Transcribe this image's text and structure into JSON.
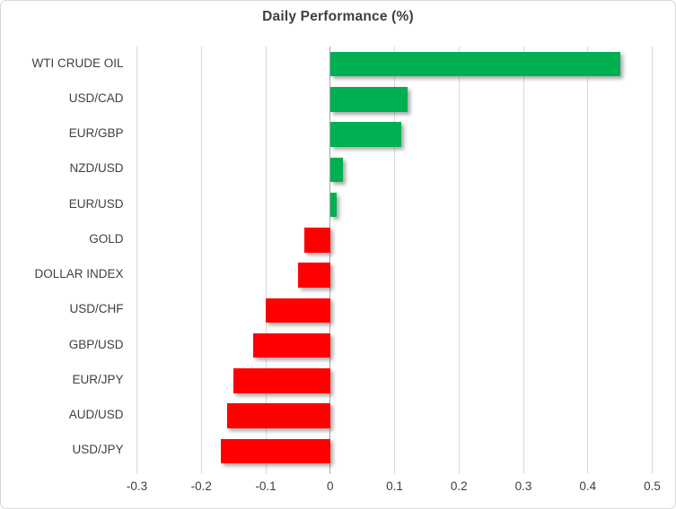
{
  "chart_data": {
    "type": "bar",
    "orientation": "horizontal",
    "title": "Daily Performance (%)",
    "categories": [
      "WTI CRUDE OIL",
      "USD/CAD",
      "EUR/GBP",
      "NZD/USD",
      "EUR/USD",
      "GOLD",
      "DOLLAR INDEX",
      "USD/CHF",
      "GBP/USD",
      "EUR/JPY",
      "AUD/USD",
      "USD/JPY"
    ],
    "values": [
      0.45,
      0.12,
      0.11,
      0.02,
      0.01,
      -0.04,
      -0.05,
      -0.1,
      -0.12,
      -0.15,
      -0.16,
      -0.17
    ],
    "xlabel": "",
    "ylabel": "",
    "xlim": [
      -0.3,
      0.5
    ],
    "xticks": [
      -0.3,
      -0.2,
      -0.1,
      0,
      0.1,
      0.2,
      0.3,
      0.4,
      0.5
    ],
    "xtick_labels": [
      "-0.3",
      "-0.2",
      "-0.1",
      "0",
      "0.1",
      "0.2",
      "0.3",
      "0.4",
      "0.5"
    ],
    "grid": true,
    "legend": "none",
    "positive_color": "#00B050",
    "negative_color": "#FF0000",
    "gridline_color": "#D9D9D9",
    "zero_axis_color": "#A6A6A6",
    "text_color": "#3F3F3F"
  }
}
